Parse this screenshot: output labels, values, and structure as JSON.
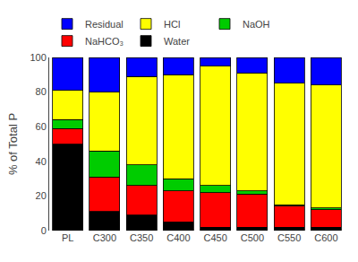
{
  "chart_data": {
    "type": "bar",
    "stacked": true,
    "categories": [
      "PL",
      "C300",
      "C350",
      "C400",
      "C450",
      "C500",
      "C550",
      "C600"
    ],
    "series": [
      {
        "name": "Water",
        "color": "#000000",
        "values": [
          50,
          11,
          9,
          5,
          2,
          2,
          2,
          2
        ]
      },
      {
        "name": "NaHCO₃",
        "color": "#ff0000",
        "values": [
          9,
          20,
          17,
          18,
          20,
          19,
          12,
          10
        ]
      },
      {
        "name": "NaOH",
        "color": "#00cc00",
        "values": [
          5,
          15,
          12,
          7,
          4,
          2,
          1,
          1
        ]
      },
      {
        "name": "HCl",
        "color": "#ffff00",
        "values": [
          17,
          34,
          51,
          60,
          69,
          68,
          70,
          71
        ]
      },
      {
        "name": "Residual",
        "color": "#0000ff",
        "values": [
          19,
          20,
          11,
          10,
          5,
          9,
          15,
          16
        ]
      }
    ],
    "ylabel": "% of Total P",
    "ylim": [
      0,
      100
    ],
    "yticks": [
      0,
      20,
      40,
      60,
      80,
      100
    ],
    "grid": false,
    "legend": "top"
  }
}
